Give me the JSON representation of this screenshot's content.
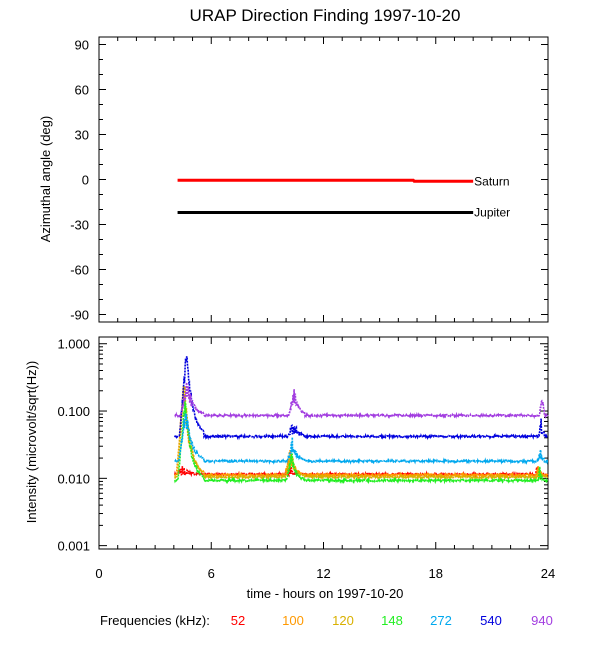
{
  "chart_data": [
    {
      "type": "line",
      "title": "URAP Direction Finding  1997-10-20",
      "ylabel": "Azimuthal angle (deg)",
      "xlabel": "",
      "xlim": [
        0,
        24
      ],
      "ylim": [
        -95,
        95
      ],
      "yticks": [
        90,
        60,
        30,
        0,
        -30,
        -60,
        -90
      ],
      "grid": false,
      "series": [
        {
          "name": "Saturn",
          "color": "#ff0000",
          "x": [
            4.2,
            16.8,
            16.85,
            20.0
          ],
          "y": [
            -0.5,
            -0.5,
            -1.2,
            -1.2
          ]
        },
        {
          "name": "Jupiter",
          "color": "#000000",
          "x": [
            4.2,
            20.0
          ],
          "y": [
            -22,
            -22
          ]
        }
      ]
    },
    {
      "type": "scatter",
      "title": "",
      "ylabel": "Intensity (microvolt/sqrt(Hz))",
      "xlabel": "time - hours on 1997-10-20",
      "xlim": [
        0,
        24
      ],
      "ylim_log10": [
        -3.05,
        0.1
      ],
      "yscale": "log",
      "yticks": [
        {
          "value": 1.0,
          "label": "1.000"
        },
        {
          "value": 0.1,
          "label": "0.100"
        },
        {
          "value": 0.01,
          "label": "0.010"
        },
        {
          "value": 0.001,
          "label": "0.001"
        }
      ],
      "xticks": [
        "0",
        "6",
        "12",
        "18",
        "24"
      ],
      "grid": false,
      "legend_title": "Frequencies (kHz):",
      "series": [
        {
          "name": "52",
          "color": "#ff0000",
          "base": 0.0115
        },
        {
          "name": "100",
          "color": "#ff9900",
          "base": 0.0112
        },
        {
          "name": "120",
          "color": "#d9b000",
          "base": 0.0105
        },
        {
          "name": "148",
          "color": "#22ee22",
          "base": 0.0093
        },
        {
          "name": "272",
          "color": "#00a8ee",
          "base": 0.018
        },
        {
          "name": "540",
          "color": "#0000dd",
          "base": 0.042
        },
        {
          "name": "940",
          "color": "#a23de0",
          "base": 0.086
        }
      ],
      "events": [
        {
          "start": 4.1,
          "end": 5.6,
          "peaks": [
            0.012,
            0.2,
            0.25,
            0.13,
            0.09,
            0.7,
            0.22
          ]
        },
        {
          "start": 9.9,
          "end": 11.0,
          "peaks": [
            0.0125,
            0.022,
            0.021,
            0.02,
            0.032,
            0.06,
            0.18
          ]
        },
        {
          "start": 23.3,
          "end": 23.8,
          "peaks": [
            0.0118,
            0.0125,
            0.0125,
            0.012,
            0.025,
            0.06,
            0.15
          ]
        }
      ]
    }
  ]
}
